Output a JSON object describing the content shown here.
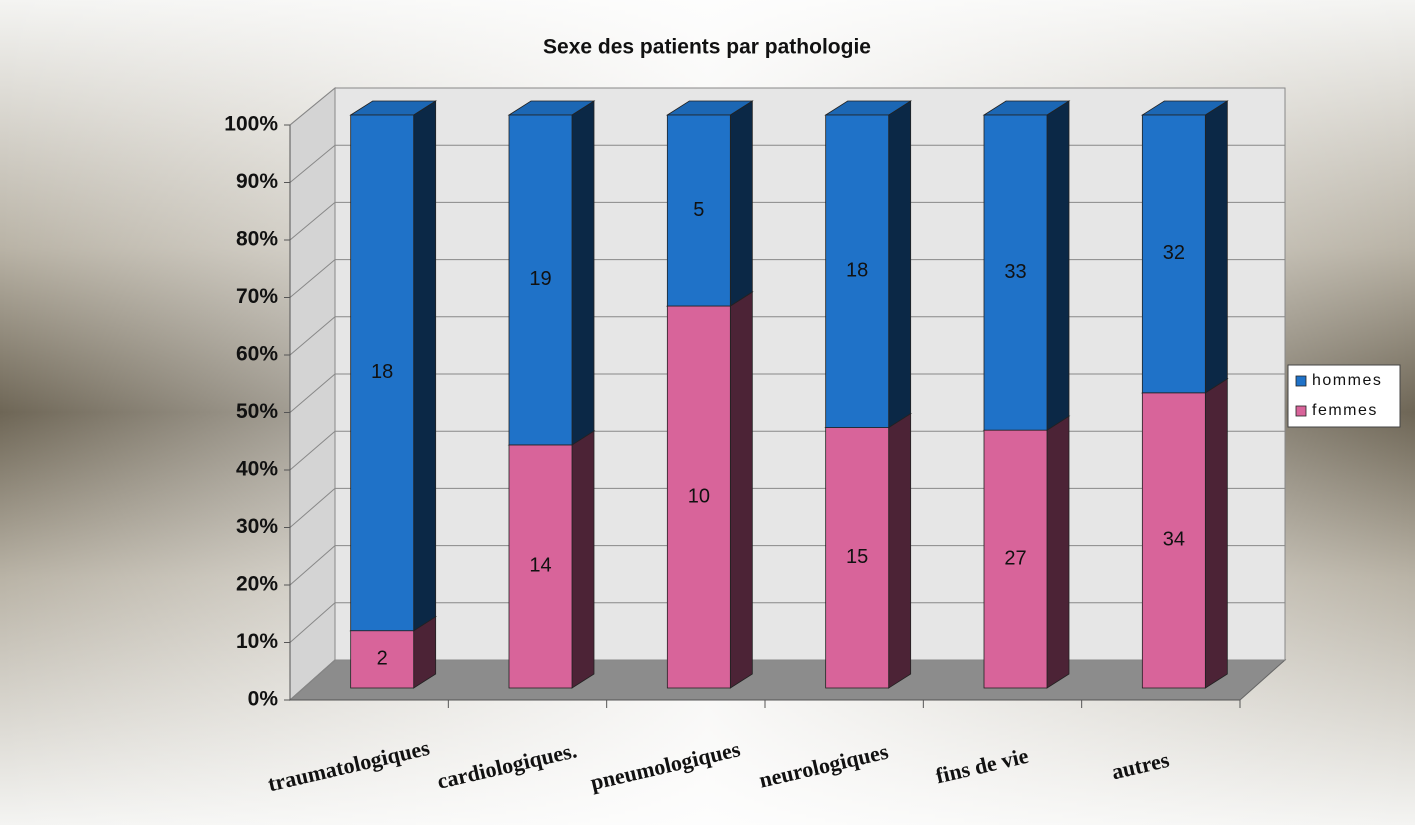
{
  "chart_data": {
    "type": "bar",
    "stack": "percent",
    "title": "Sexe des patients par pathologie",
    "categories": [
      "traumatologiques",
      "cardiologiques.",
      "pneumologiques",
      "neurologiques",
      "fins de vie",
      "autres"
    ],
    "series": [
      {
        "name": "femmes",
        "color": "#d8649a",
        "values": [
          2,
          14,
          10,
          15,
          27,
          34
        ]
      },
      {
        "name": "hommes",
        "color": "#1f72c8",
        "values": [
          18,
          19,
          5,
          18,
          33,
          32
        ]
      }
    ],
    "ylim": [
      0,
      100
    ],
    "yticks": [
      {
        "value": 0,
        "label": "0%"
      },
      {
        "value": 10,
        "label": "10%"
      },
      {
        "value": 20,
        "label": "20%"
      },
      {
        "value": 30,
        "label": "30%"
      },
      {
        "value": 40,
        "label": "40%"
      },
      {
        "value": 50,
        "label": "50%"
      },
      {
        "value": 60,
        "label": "60%"
      },
      {
        "value": 70,
        "label": "70%"
      },
      {
        "value": 80,
        "label": "80%"
      },
      {
        "value": 90,
        "label": "90%"
      },
      {
        "value": 100,
        "label": "100%"
      }
    ],
    "grid": true,
    "legend": "right"
  }
}
